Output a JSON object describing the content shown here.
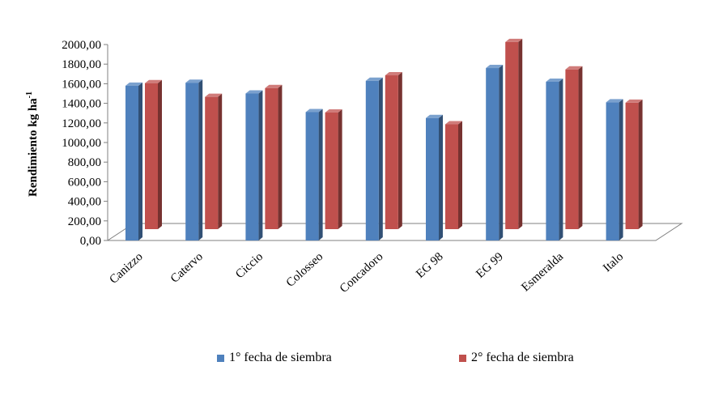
{
  "chart_data": {
    "type": "bar",
    "style": "3d-clustered-column",
    "categories": [
      "Canizzo",
      "Catervo",
      "Ciccio",
      "Colosseo",
      "Concadoro",
      "EG 98",
      "EG 99",
      "Esmeralda",
      "Italo"
    ],
    "series": [
      {
        "name": "1° fecha de siembra",
        "color": "#4F81BD",
        "values": [
          1580,
          1610,
          1500,
          1310,
          1630,
          1250,
          1760,
          1620,
          1410
        ]
      },
      {
        "name": "2° fecha de siembra",
        "color": "#C0504D",
        "values": [
          1490,
          1350,
          1440,
          1190,
          1570,
          1070,
          1910,
          1630,
          1290
        ]
      }
    ],
    "ylabel": "Rendimiento kg ha",
    "ylabel_superscript": "-1",
    "ylim": [
      0,
      2000
    ],
    "yticks": [
      "0,00",
      "200,00",
      "400,00",
      "600,00",
      "800,00",
      "1000,00",
      "1200,00",
      "1400,00",
      "1600,00",
      "1800,00",
      "2000,00"
    ],
    "grid": false,
    "legend_position": "bottom"
  }
}
